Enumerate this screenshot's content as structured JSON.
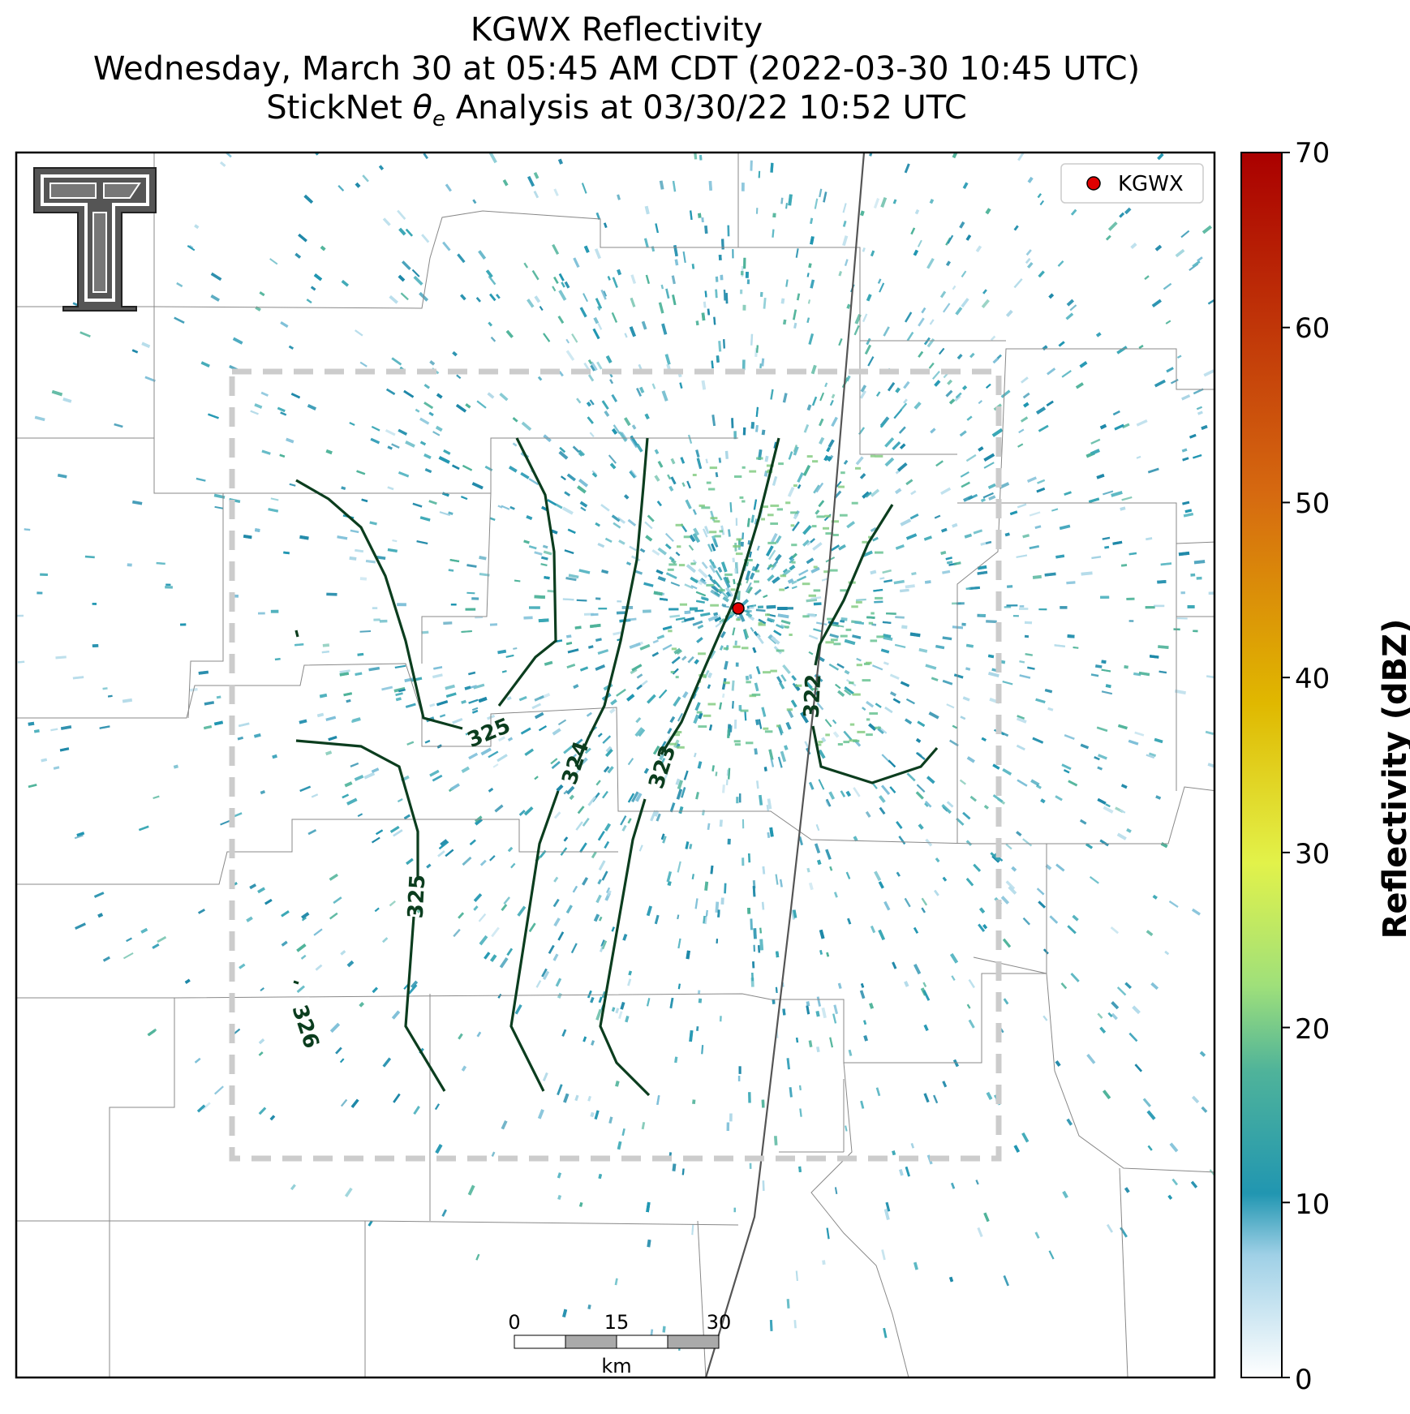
{
  "titles": {
    "line1": "KGWX Reflectivity",
    "line2": "Wednesday, March 30 at 05:45 AM CDT (2022-03-30 10:45 UTC)",
    "line3_prefix": "StickNet ",
    "line3_theta": "θ",
    "line3_sub": "e",
    "line3_suffix": " Analysis at 03/30/22 10:52 UTC"
  },
  "legend": {
    "label": "KGWX"
  },
  "colorbar": {
    "label": "Reflectivity (dBZ)",
    "ticks": [
      "0",
      "10",
      "20",
      "30",
      "40",
      "50",
      "60",
      "70"
    ],
    "range": [
      0,
      70
    ]
  },
  "scalebar": {
    "labels": [
      "0",
      "15",
      "30"
    ],
    "unit": "km"
  },
  "contours": [
    {
      "label": "325"
    },
    {
      "label": "325"
    },
    {
      "label": "324"
    },
    {
      "label": "323"
    },
    {
      "label": "322"
    },
    {
      "label": "326"
    }
  ],
  "colors": {
    "contour": "#0b3d1e",
    "radar_dot": "#e00000",
    "echo": "#2a93b0",
    "domain_box": "#cccccc"
  }
}
